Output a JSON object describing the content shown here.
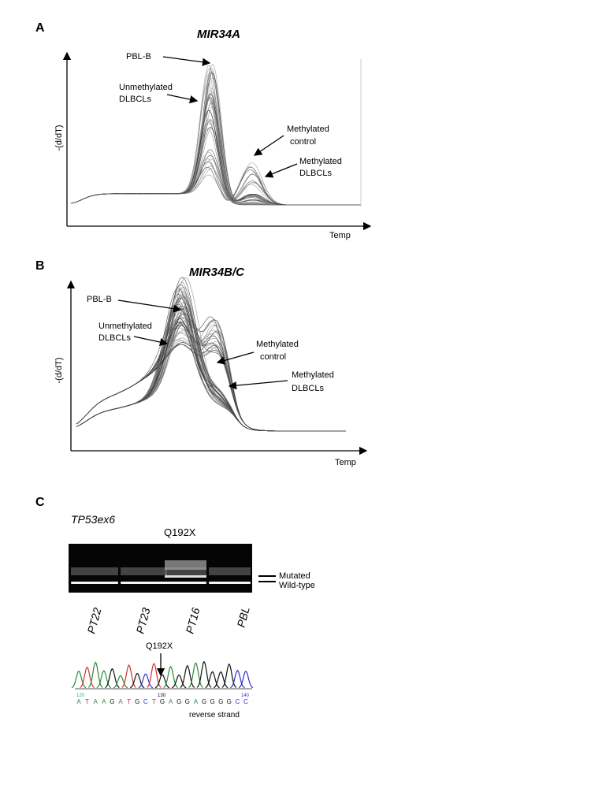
{
  "panels": [
    {
      "letter": "A",
      "title": "MIR34A",
      "y_label": "-(d/dT)",
      "x_label": "Temp",
      "annotations": [
        {
          "lines": [
            "PBL-B"
          ]
        },
        {
          "lines": [
            "Unmethylated",
            "DLBCLs"
          ]
        },
        {
          "lines": [
            "Methylated",
            "control"
          ]
        },
        {
          "lines": [
            "Methylated",
            "DLBCLs"
          ]
        }
      ]
    },
    {
      "letter": "B",
      "title": "MIR34B/C",
      "y_label": "-(d/dT)",
      "x_label": "Temp",
      "annotations": [
        {
          "lines": [
            "PBL-B"
          ]
        },
        {
          "lines": [
            "Unmethylated",
            "DLBCLs"
          ]
        },
        {
          "lines": [
            "Methylated",
            "control"
          ]
        },
        {
          "lines": [
            "Methylated",
            "DLBCLs"
          ]
        }
      ]
    }
  ],
  "panel_c": {
    "letter": "C",
    "gene": "TP53ex6",
    "mutation": "Q192X",
    "band_labels": [
      "Mutated",
      "Wild-type"
    ],
    "lanes": [
      "PT22",
      "PT23",
      "PT16",
      "PBL"
    ],
    "chromatogram": {
      "mutation": "Q192X",
      "positions": [
        "120",
        "130",
        "140"
      ],
      "sequence": [
        "A",
        "T",
        "A",
        "A",
        "G",
        "A",
        "T",
        "G",
        "C",
        "T",
        "G",
        "A",
        "G",
        "G",
        "A",
        "G",
        "G",
        "G",
        "G",
        "C",
        "C"
      ],
      "strand": "reverse strand"
    }
  }
}
